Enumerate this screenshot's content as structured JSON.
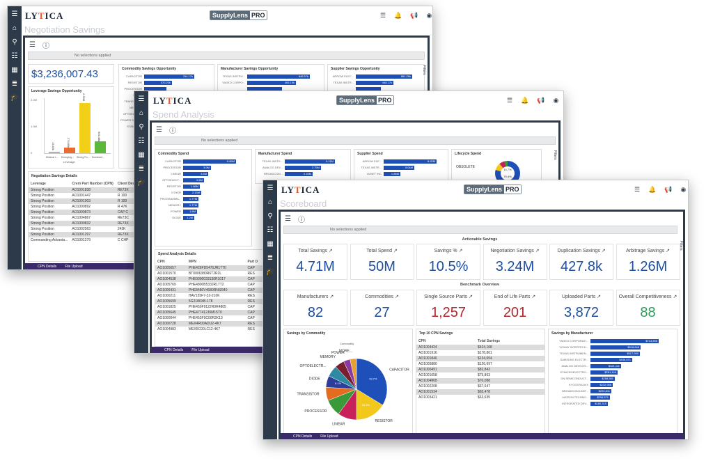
{
  "windows": {
    "negotiation": {
      "title": "Negotiation Savings",
      "selection": "No selections applied",
      "total": "$3,236,007.43",
      "filters": "Filters",
      "commodity_panel": {
        "title": "Commodity Savings Opportunity",
        "rows": [
          {
            "label": "CAPACITOR",
            "value": "764.17k",
            "pct": 0.9
          },
          {
            "label": "RESISTOR",
            "value": "370.23k",
            "pct": 0.5
          },
          {
            "label": "PROCESSOR",
            "value": "",
            "pct": 0.4
          },
          {
            "label": "DIODE",
            "value": "",
            "pct": 0.3
          },
          {
            "label": "TRANSISTOR",
            "value": "",
            "pct": 0.25
          },
          {
            "label": "MEMORY",
            "value": "",
            "pct": 0.2
          },
          {
            "label": "OPTOELECTR",
            "value": "",
            "pct": 0.15
          },
          {
            "label": "POWER SUPPLY",
            "value": "",
            "pct": 0.12
          },
          {
            "label": "STANDARD",
            "value": "",
            "pct": 0.1
          }
        ]
      },
      "manufacturer_panel": {
        "title": "Manufacturer Savings Opportunity",
        "rows": [
          {
            "label": "TEXAS INSTRU...",
            "value": "846.57k",
            "pct": 0.9
          },
          {
            "label": "YAGEO CORPO...",
            "value": "406.19k",
            "pct": 0.7
          },
          {
            "label": "",
            "value": "",
            "pct": 0.5
          }
        ]
      },
      "supplier_panel": {
        "title": "Supplier Savings Opportunity",
        "rows": [
          {
            "label": "ARROW ELEC...",
            "value": "861.26k",
            "pct": 0.9
          },
          {
            "label": "TEXAS INSTR...",
            "value": "448.17k",
            "pct": 0.6
          },
          {
            "label": "",
            "value": "",
            "pct": 0.4
          }
        ]
      },
      "leverage_panel": {
        "title": "Leverage Savings Opportunity",
        "axis": "Leverage",
        "yticks": [
          "2.0M",
          "1.0M",
          "0"
        ],
        "bars": [
          {
            "label": "Minimal L...",
            "value": "13.82k",
            "color": "#b0b0b0",
            "pct": 0.02
          },
          {
            "label": "Emerging...",
            "value": "274.85k",
            "color": "#ea6b2f",
            "pct": 0.1
          },
          {
            "label": "Strong Po...",
            "value": "2.39M",
            "color": "#f2d01a",
            "pct": 0.95
          },
          {
            "label": "Dominant...",
            "value": "509.48k",
            "color": "#5cb83a",
            "pct": 0.22
          }
        ]
      },
      "details": {
        "title": "Negotiation Savings Details",
        "headers": [
          "Leverage",
          "Crem Part Number (CPN)",
          "Client Description"
        ],
        "rows": [
          [
            "Strong Position",
            "AO1001838",
            "RE73X"
          ],
          [
            "Strong Position",
            "AO1001447",
            "R 100"
          ],
          [
            "Strong Position",
            "AO1001903",
            "R 100"
          ],
          [
            "Strong Position",
            "AO1000892",
            "R 47K"
          ],
          [
            "Strong Position",
            "AO1000873",
            "CAP C"
          ],
          [
            "Strong Position",
            "AO1004867",
            "RE73C"
          ],
          [
            "Strong Position",
            "AO1000832",
            "RE73X"
          ],
          [
            "Strong Position",
            "AO1002563",
            "243K"
          ],
          [
            "Strong Position",
            "AO1001297",
            "RE73X"
          ],
          [
            "Commanding Advanta...",
            "AO1001279",
            "C CHP"
          ]
        ]
      },
      "tabs": [
        "CPN Details",
        "File Upload"
      ]
    },
    "spend": {
      "title": "Spend Analysis",
      "selection": "No selections applied",
      "filters": "Filters",
      "commodity_panel": {
        "title": "Commodity Spend",
        "xticks": [
          "0",
          "5M",
          "10M",
          "15M"
        ],
        "rows": [
          {
            "label": "CAPACITOR",
            "value": "8.96M",
            "pct": 0.95
          },
          {
            "label": "PROCESSOR",
            "value": "3.9M",
            "pct": 0.5
          },
          {
            "label": "LINEAR",
            "value": "3.5M",
            "pct": 0.45
          },
          {
            "label": "OPTOELECT...",
            "value": "2.6M",
            "pct": 0.38
          },
          {
            "label": "RESISTOR",
            "value": "1.88M",
            "pct": 0.3
          },
          {
            "label": "OTHER",
            "value": "2.13M",
            "pct": 0.32
          },
          {
            "label": "PROGRAMMA...",
            "value": "1.77M",
            "pct": 0.27
          },
          {
            "label": "MEMORY",
            "value": "1.77M",
            "pct": 0.27
          },
          {
            "label": "POWER",
            "value": "1.8M",
            "pct": 0.25
          },
          {
            "label": "DIODE",
            "value": "1.2M",
            "pct": 0.2
          }
        ]
      },
      "manufacturer_panel": {
        "title": "Manufacturer Spend",
        "rows": [
          {
            "label": "TEXAS INSTR...",
            "value": "5.11M",
            "pct": 0.9
          },
          {
            "label": "ANALOG DEV...",
            "value": "2.75M",
            "pct": 0.65
          },
          {
            "label": "BROADCOM...",
            "value": "2.15M",
            "pct": 0.5
          }
        ]
      },
      "supplier_panel": {
        "title": "Supplier Spend",
        "rows": [
          {
            "label": "ARROW ELE...",
            "value": "8.92M",
            "pct": 0.95
          },
          {
            "label": "TEXAS INSTR...",
            "value": "5.04M",
            "pct": 0.55
          },
          {
            "label": "AVNET INC",
            "value": "1.88M",
            "pct": 0.3
          }
        ]
      },
      "lifecycle_panel": {
        "title": "Lifecycle Spend",
        "label": "OBSOLETE",
        "value1": "14.7%",
        "value2": "79.4%"
      },
      "details": {
        "title": "Spend Analysis Details",
        "headers": [
          "CPN",
          "MPN",
          "Part D"
        ],
        "rows": [
          [
            "AO1005657",
            "PHE426FD5470JR17T0",
            "CAP"
          ],
          [
            "AO1001570",
            "BT0006380R6T2R2L",
            "RES"
          ],
          [
            "AO1004538",
            "PHE0000033130R1017",
            "CAP"
          ],
          [
            "AO1005769",
            "PHE4800B533JR17T2",
            "CAP"
          ],
          [
            "AO1006431",
            "PHE8480V4680RNSR40",
            "CAP"
          ],
          [
            "AO1000211",
            "HAV155F7-32-210K",
            "RES"
          ],
          [
            "AO1005699",
            "5G2180XB-178",
            "RES"
          ],
          [
            "AO1001825",
            "PHE450F9122R0R4805",
            "CAP"
          ],
          [
            "AO1005645",
            "PHE477412J6M15T0",
            "CAP"
          ],
          [
            "AO1000044",
            "PHE453F9C00R2K13",
            "CAP"
          ],
          [
            "AO1000728",
            "MEX4R00ADU2-4K7",
            "RES"
          ],
          [
            "AO1004983",
            "MEX5C00LC12-4K7",
            "RES"
          ]
        ]
      },
      "tabs": [
        "CPN Details",
        "File Upload"
      ]
    },
    "scoreboard": {
      "title": "Scoreboard",
      "selection": "No selections applied",
      "filters": "Filters",
      "actionable": "Actionable Savings",
      "benchmark": "Benchmark Overview",
      "kpis_top": [
        {
          "label": "Total Savings",
          "value": "4.71M",
          "color": "#1e4fa0"
        },
        {
          "label": "Total Spend",
          "value": "50M",
          "color": "#1e4fa0"
        },
        {
          "label": "Savings %",
          "value": "10.5%",
          "color": "#1e4fa0"
        },
        {
          "label": "Negotiation Savings",
          "value": "3.24M",
          "color": "#1e4fa0"
        },
        {
          "label": "Duplication Savings",
          "value": "427.8k",
          "color": "#1e4fa0"
        },
        {
          "label": "Arbitrage Savings",
          "value": "1.26M",
          "color": "#1e4fa0"
        }
      ],
      "kpis_bottom": [
        {
          "label": "Manufacturers",
          "value": "82",
          "color": "#1e4fa0"
        },
        {
          "label": "Commodities",
          "value": "27",
          "color": "#1e4fa0"
        },
        {
          "label": "Single Source Parts",
          "value": "1,257",
          "color": "#b3272d"
        },
        {
          "label": "End of Life Parts",
          "value": "201",
          "color": "#b3272d"
        },
        {
          "label": "Uploaded Parts",
          "value": "3,872",
          "color": "#1e4fa0"
        },
        {
          "label": "Overall Competitiveness",
          "value": "88",
          "color": "#2e9c5a"
        }
      ],
      "pie": {
        "title": "Savings by Commodity",
        "legend_title": "Commodity",
        "slices": [
          {
            "label": "CAPACITOR",
            "value": "33.7%",
            "frac": 0.337,
            "color": "#1f4fb8"
          },
          {
            "label": "RESISTOR",
            "value": "16.3%",
            "frac": 0.163,
            "color": "#f2c81a"
          },
          {
            "label": "LINEAR",
            "value": "",
            "frac": 0.1,
            "color": "#c8205a"
          },
          {
            "label": "PROCESSOR",
            "value": "",
            "frac": 0.09,
            "color": "#3a9a3a"
          },
          {
            "label": "TRANSISTOR",
            "value": "",
            "frac": 0.07,
            "color": "#e46c1f"
          },
          {
            "label": "DIODE",
            "value": "6.1%",
            "frac": 0.061,
            "color": "#2c3d9a"
          },
          {
            "label": "OPTOELECTR...",
            "value": "",
            "frac": 0.06,
            "color": "#2e8aa0"
          },
          {
            "label": "MEMORY",
            "value": "",
            "frac": 0.05,
            "color": "#7a1f2f"
          },
          {
            "label": "POWER",
            "value": "",
            "frac": 0.035,
            "color": "#8a3aa0"
          },
          {
            "label": "MORE...",
            "value": "",
            "frac": 0.033,
            "color": "#e8a030"
          }
        ]
      },
      "top10": {
        "title": "Top 10 CPN Savings",
        "headers": [
          "CPN",
          "Total Savings"
        ],
        "rows": [
          [
            "AO1004424",
            "$424,168"
          ],
          [
            "AO1001916",
            "$178,861"
          ],
          [
            "AO1001846",
            "$134,654"
          ],
          [
            "AO1005880",
            "$126,697"
          ],
          [
            "AO1000491",
            "$82,843"
          ],
          [
            "AO1001058",
            "$75,803"
          ],
          [
            "AO1004868",
            "$70,088"
          ],
          [
            "AO1002208",
            "$67,647"
          ],
          [
            "AO1001534",
            "$65,478"
          ],
          [
            "AO1003421",
            "$63,635"
          ]
        ]
      },
      "mfr": {
        "title": "Savings by Manufacturer",
        "rows": [
          {
            "label": "YAGEO CORPORATI...",
            "value": "$713,898",
            "pct": 0.98
          },
          {
            "label": "VISHAY INTERTECH...",
            "value": "$518,848",
            "pct": 0.72
          },
          {
            "label": "TEXAS INSTRUMEN...",
            "value": "$517,590",
            "pct": 0.71
          },
          {
            "label": "SAMSUNG ELECTR...",
            "value": "$436,671",
            "pct": 0.6
          },
          {
            "label": "ANALOG DEVICES...",
            "value": "$321,111",
            "pct": 0.44
          },
          {
            "label": "STMICROELECTRO...",
            "value": "$281,149",
            "pct": 0.39
          },
          {
            "label": "ON SEMICONDUCT...",
            "value": "$258,581",
            "pct": 0.35
          },
          {
            "label": "KYOCERA AVX",
            "value": "$232,988",
            "pct": 0.32
          },
          {
            "label": "BROADCOM LIMIT...",
            "value": "$220,811",
            "pct": 0.3
          },
          {
            "label": "MICRON TECHNO...",
            "value": "$205,571",
            "pct": 0.28
          },
          {
            "label": "INTEGRATED DEV...",
            "value": "$180,315",
            "pct": 0.25
          }
        ]
      },
      "tabs": [
        "CPN Details",
        "File Upload"
      ]
    }
  },
  "brand": {
    "logo": "LYTICA",
    "product": "SupplyLens",
    "pro": "PRO"
  }
}
